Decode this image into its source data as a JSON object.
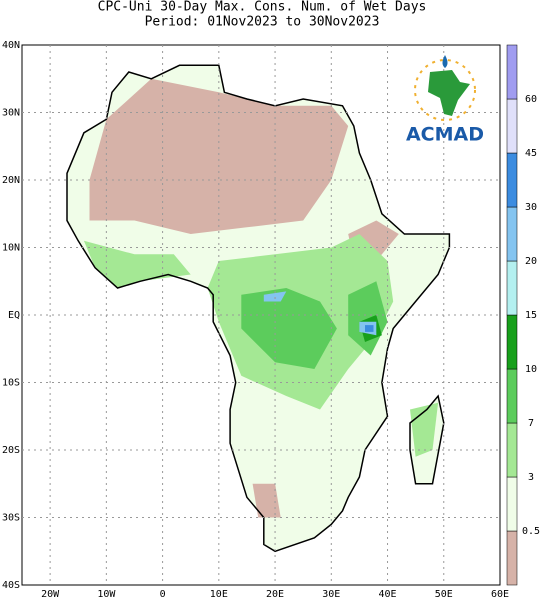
{
  "header": {
    "title": "CPC-Uni 30-Day Max. Cons. Num. of Wet Days",
    "period": "Period: 01Nov2023 to 30Nov2023"
  },
  "map": {
    "lat_labels": [
      "40N",
      "30N",
      "20N",
      "10N",
      "EQ",
      "10S",
      "20S",
      "30S",
      "40S"
    ],
    "lon_labels": [
      "20W",
      "10W",
      "0",
      "10E",
      "20E",
      "30E",
      "40E",
      "50E",
      "60E"
    ],
    "logo": "ACMAD"
  },
  "legend": {
    "levels": [
      0.5,
      3,
      7,
      10,
      15,
      20,
      30,
      45,
      60
    ],
    "colors": [
      "#d6b2a8",
      "#f0fde8",
      "#a4e894",
      "#5ccc5c",
      "#18a01c",
      "#b4f0f0",
      "#84c4f0",
      "#3c8ce0",
      "#e0e0fa",
      "#a09cf0"
    ]
  }
}
